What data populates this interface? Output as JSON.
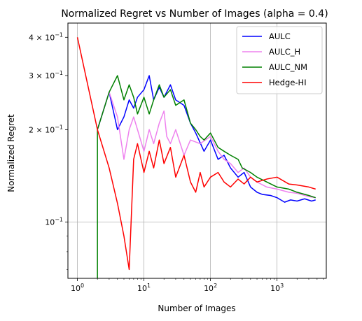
{
  "chart_data": {
    "type": "line",
    "title": "Normalized Regret vs Number of Images (alpha = 0.4)",
    "xlabel": "Number of Images",
    "ylabel": "Normalized Regret",
    "xscale": "log",
    "yscale": "log",
    "xlim": [
      0.72,
      5500
    ],
    "ylim": [
      0.0655,
      0.445
    ],
    "grid": "major",
    "legend_position": "top-right",
    "x_ticks": [
      {
        "value": 1,
        "base": "10",
        "exp": "0"
      },
      {
        "value": 10,
        "base": "10",
        "exp": "1"
      },
      {
        "value": 100,
        "base": "10",
        "exp": "2"
      },
      {
        "value": 1000,
        "base": "10",
        "exp": "3"
      }
    ],
    "y_ticks": [
      {
        "value": 0.1,
        "mant": "",
        "base": "10",
        "exp": "−1"
      },
      {
        "value": 0.2,
        "mant": "2 × ",
        "base": "10",
        "exp": "−1"
      },
      {
        "value": 0.3,
        "mant": "3 × ",
        "base": "10",
        "exp": "−1"
      },
      {
        "value": 0.4,
        "mant": "4 × ",
        "base": "10",
        "exp": "−1"
      }
    ],
    "y_minor_ticks": [
      0.07,
      0.08,
      0.09
    ],
    "series": [
      {
        "name": "AULC",
        "color": "#0000ff",
        "points": [
          [
            2,
            0.2
          ],
          [
            3,
            0.265
          ],
          [
            4,
            0.2
          ],
          [
            5,
            0.22
          ],
          [
            6,
            0.25
          ],
          [
            7,
            0.235
          ],
          [
            8,
            0.255
          ],
          [
            10,
            0.27
          ],
          [
            12,
            0.3
          ],
          [
            14,
            0.25
          ],
          [
            17,
            0.275
          ],
          [
            20,
            0.255
          ],
          [
            25,
            0.28
          ],
          [
            30,
            0.25
          ],
          [
            40,
            0.24
          ],
          [
            50,
            0.21
          ],
          [
            60,
            0.195
          ],
          [
            80,
            0.17
          ],
          [
            100,
            0.185
          ],
          [
            130,
            0.16
          ],
          [
            160,
            0.165
          ],
          [
            200,
            0.15
          ],
          [
            260,
            0.14
          ],
          [
            320,
            0.145
          ],
          [
            400,
            0.13
          ],
          [
            500,
            0.125
          ],
          [
            600,
            0.123
          ],
          [
            800,
            0.122
          ],
          [
            1000,
            0.12
          ],
          [
            1300,
            0.116
          ],
          [
            1600,
            0.118
          ],
          [
            2000,
            0.117
          ],
          [
            2600,
            0.119
          ],
          [
            3300,
            0.117
          ],
          [
            3800,
            0.118
          ]
        ]
      },
      {
        "name": "AULC_H",
        "color": "#ee82ee",
        "points": [
          [
            2,
            0.2
          ],
          [
            3,
            0.265
          ],
          [
            4,
            0.22
          ],
          [
            5,
            0.16
          ],
          [
            6,
            0.2
          ],
          [
            7,
            0.22
          ],
          [
            8,
            0.2
          ],
          [
            10,
            0.17
          ],
          [
            12,
            0.2
          ],
          [
            14,
            0.18
          ],
          [
            17,
            0.21
          ],
          [
            20,
            0.23
          ],
          [
            22,
            0.19
          ],
          [
            25,
            0.18
          ],
          [
            30,
            0.2
          ],
          [
            40,
            0.165
          ],
          [
            50,
            0.185
          ],
          [
            70,
            0.18
          ],
          [
            100,
            0.19
          ],
          [
            130,
            0.17
          ],
          [
            160,
            0.16
          ],
          [
            200,
            0.155
          ],
          [
            260,
            0.145
          ],
          [
            320,
            0.15
          ],
          [
            400,
            0.14
          ],
          [
            500,
            0.135
          ],
          [
            700,
            0.13
          ],
          [
            1000,
            0.128
          ],
          [
            1500,
            0.125
          ],
          [
            2000,
            0.124
          ],
          [
            3000,
            0.121
          ],
          [
            3800,
            0.12
          ]
        ]
      },
      {
        "name": "AULC_NM",
        "color": "#008000",
        "points": [
          [
            2,
            0.0655
          ],
          [
            2,
            0.2
          ],
          [
            3,
            0.265
          ],
          [
            4,
            0.3
          ],
          [
            5,
            0.25
          ],
          [
            6,
            0.28
          ],
          [
            7,
            0.255
          ],
          [
            8,
            0.225
          ],
          [
            10,
            0.255
          ],
          [
            12,
            0.225
          ],
          [
            14,
            0.25
          ],
          [
            17,
            0.28
          ],
          [
            20,
            0.255
          ],
          [
            25,
            0.27
          ],
          [
            30,
            0.24
          ],
          [
            40,
            0.25
          ],
          [
            50,
            0.21
          ],
          [
            60,
            0.2
          ],
          [
            70,
            0.19
          ],
          [
            80,
            0.185
          ],
          [
            100,
            0.195
          ],
          [
            130,
            0.175
          ],
          [
            160,
            0.17
          ],
          [
            200,
            0.165
          ],
          [
            260,
            0.16
          ],
          [
            300,
            0.15
          ],
          [
            400,
            0.145
          ],
          [
            500,
            0.14
          ],
          [
            700,
            0.135
          ],
          [
            1000,
            0.13
          ],
          [
            1500,
            0.128
          ],
          [
            2000,
            0.125
          ],
          [
            3000,
            0.122
          ],
          [
            3800,
            0.12
          ]
        ]
      },
      {
        "name": "Hedge-HI",
        "color": "#ff0000",
        "points": [
          [
            1,
            0.4
          ],
          [
            2,
            0.2
          ],
          [
            3,
            0.15
          ],
          [
            4,
            0.115
          ],
          [
            5,
            0.09
          ],
          [
            6,
            0.07
          ],
          [
            7,
            0.16
          ],
          [
            8,
            0.18
          ],
          [
            10,
            0.145
          ],
          [
            12,
            0.17
          ],
          [
            14,
            0.15
          ],
          [
            17,
            0.185
          ],
          [
            20,
            0.155
          ],
          [
            25,
            0.175
          ],
          [
            30,
            0.14
          ],
          [
            40,
            0.165
          ],
          [
            50,
            0.135
          ],
          [
            60,
            0.125
          ],
          [
            70,
            0.145
          ],
          [
            80,
            0.13
          ],
          [
            100,
            0.14
          ],
          [
            130,
            0.145
          ],
          [
            160,
            0.135
          ],
          [
            200,
            0.13
          ],
          [
            260,
            0.138
          ],
          [
            320,
            0.133
          ],
          [
            400,
            0.14
          ],
          [
            500,
            0.135
          ],
          [
            700,
            0.138
          ],
          [
            1000,
            0.14
          ],
          [
            1500,
            0.133
          ],
          [
            2000,
            0.132
          ],
          [
            3000,
            0.13
          ],
          [
            3800,
            0.128
          ]
        ]
      }
    ]
  }
}
